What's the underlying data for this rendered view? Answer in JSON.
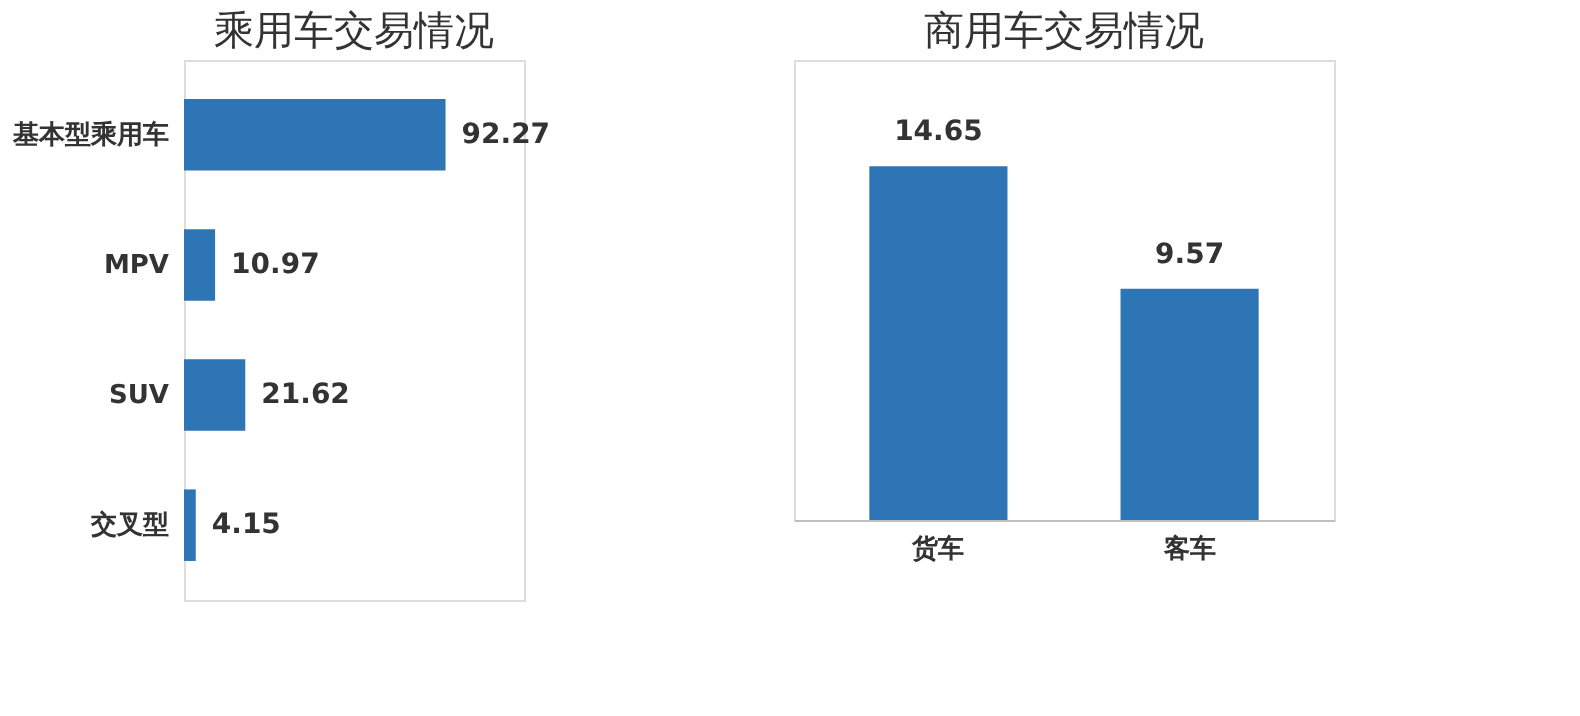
{
  "chart_data": [
    {
      "type": "bar",
      "title": "乘用车交易情况",
      "orientation": "horizontal",
      "categories": [
        "基本型乘用车",
        "MPV",
        "SUV",
        "交叉型"
      ],
      "values": [
        92.27,
        10.97,
        21.62,
        4.15
      ],
      "color": "#2e75b6",
      "data_labels": true
    },
    {
      "type": "bar",
      "title": "商用车交易情况",
      "categories": [
        "货车",
        "客车"
      ],
      "values": [
        14.65,
        9.57
      ],
      "color": "#2e75b6",
      "data_labels": true
    }
  ]
}
